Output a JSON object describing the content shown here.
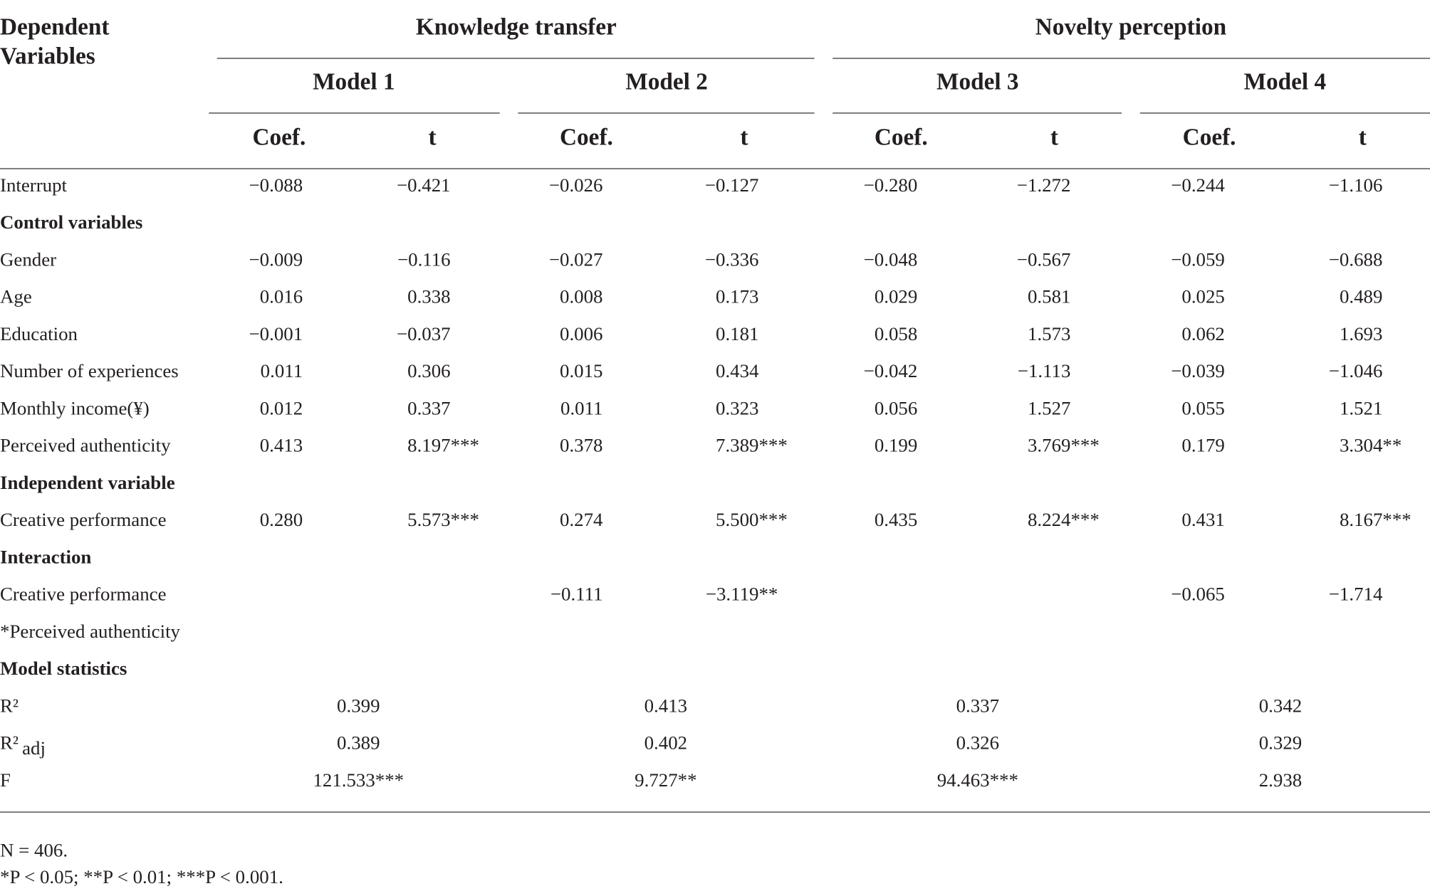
{
  "header": {
    "stub": [
      "Dependent",
      "Variables"
    ],
    "groups": [
      "Knowledge transfer",
      "Novelty perception"
    ],
    "models": [
      "Model 1",
      "Model 2",
      "Model 3",
      "Model 4"
    ],
    "subheads": [
      "Coef.",
      "t",
      "Coef.",
      "t",
      "Coef.",
      "t",
      "Coef.",
      "t"
    ]
  },
  "table": {
    "rows": [
      {
        "label": "Interrupt",
        "cells": [
          "−0.088",
          "−0.421",
          "−0.026",
          "−0.127",
          "−0.280",
          "−1.272",
          "−0.244",
          "−1.106"
        ]
      },
      {
        "section": "Control variables"
      },
      {
        "label": "Gender",
        "cells": [
          "−0.009",
          "−0.116",
          "−0.027",
          "−0.336",
          "−0.048",
          "−0.567",
          "−0.059",
          "−0.688"
        ]
      },
      {
        "label": "Age",
        "cells": [
          "0.016",
          "0.338",
          "0.008",
          "0.173",
          "0.029",
          "0.581",
          "0.025",
          "0.489"
        ]
      },
      {
        "label": "Education",
        "cells": [
          "−0.001",
          "−0.037",
          "0.006",
          "0.181",
          "0.058",
          "1.573",
          "0.062",
          "1.693"
        ]
      },
      {
        "label": "Number of experiences",
        "cells": [
          "0.011",
          "0.306",
          "0.015",
          "0.434",
          "−0.042",
          "−1.113",
          "−0.039",
          "−1.046"
        ]
      },
      {
        "label": "Monthly income(¥)",
        "cells": [
          "0.012",
          "0.337",
          "0.011",
          "0.323",
          "0.056",
          "1.527",
          "0.055",
          "1.521"
        ]
      },
      {
        "label": "Perceived authenticity",
        "cells": [
          "0.413",
          "8.197***",
          "0.378",
          "7.389***",
          "0.199",
          "3.769***",
          "0.179",
          "3.304**"
        ]
      },
      {
        "section": "Independent variable"
      },
      {
        "label": "Creative performance",
        "cells": [
          "0.280",
          "5.573***",
          "0.274",
          "5.500***",
          "0.435",
          "8.224***",
          "0.431",
          "8.167***"
        ]
      },
      {
        "section": "Interaction"
      },
      {
        "label": "Creative performance",
        "cells": [
          null,
          null,
          "−0.111",
          "−3.119**",
          null,
          null,
          "−0.065",
          "−1.714"
        ]
      },
      {
        "label": "*Perceived authenticity"
      },
      {
        "section": "Model statistics"
      },
      {
        "label": "R²",
        "stats": [
          "0.399",
          "0.413",
          "0.337",
          "0.342"
        ]
      },
      {
        "label": "R²",
        "sub": "adj",
        "stats": [
          "0.389",
          "0.402",
          "0.326",
          "0.329"
        ]
      },
      {
        "label": "F",
        "stats": [
          "121.533***",
          "9.727**",
          "94.463***",
          "2.938"
        ]
      }
    ]
  },
  "notes": [
    "N = 406.",
    "*P < 0.05; **P < 0.01; ***P < 0.001."
  ]
}
